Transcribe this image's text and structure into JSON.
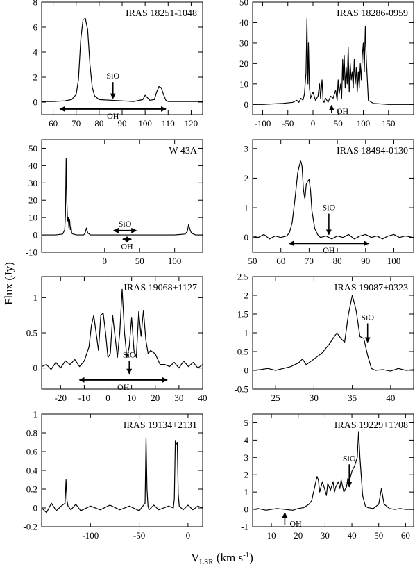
{
  "figure": {
    "ylabel": "Flux (Jy)",
    "xlabel_main": "V",
    "xlabel_sub": "LSR",
    "xlabel_unit_pre": " (km s",
    "xlabel_unit_exp": "-1",
    "xlabel_unit_post": ")"
  },
  "chart_data": [
    {
      "type": "line",
      "title": "IRAS 18251-1048",
      "xlim": [
        55,
        125
      ],
      "ylim": [
        -1,
        8
      ],
      "xticks": [
        60,
        70,
        80,
        90,
        100,
        110,
        120
      ],
      "yticks": [
        0,
        2,
        4,
        6,
        8
      ],
      "series": [
        {
          "x": [
            55,
            60,
            65,
            68,
            70,
            71,
            72,
            73,
            74,
            75,
            76,
            77,
            78,
            80,
            85,
            90,
            95,
            99,
            100,
            101,
            102,
            104,
            105,
            106,
            107,
            108,
            109,
            110,
            115,
            120,
            125
          ],
          "values": [
            0.05,
            0.05,
            0.1,
            0.2,
            0.6,
            1.8,
            5.0,
            6.6,
            6.7,
            5.8,
            3.0,
            1.2,
            0.5,
            0.2,
            0.15,
            0.1,
            0.05,
            0.2,
            0.55,
            0.35,
            0.15,
            0.2,
            0.8,
            1.25,
            1.15,
            0.6,
            0.15,
            0.05,
            0.05,
            0.05,
            0.05
          ]
        }
      ],
      "annotations": [
        {
          "type": "arrow-down",
          "label": "SiO",
          "x": 86,
          "y_from": 1.6,
          "y_to": 0.3
        },
        {
          "type": "range",
          "label": "OH",
          "x_from": 63,
          "x_to": 109,
          "y": -0.55
        }
      ]
    },
    {
      "type": "line",
      "title": "IRAS 18286-0959",
      "xlim": [
        -120,
        200
      ],
      "ylim": [
        -5,
        50
      ],
      "xticks": [
        -100,
        -50,
        0,
        50,
        100,
        150
      ],
      "yticks": [
        0,
        10,
        20,
        30,
        40,
        50
      ],
      "series": [
        {
          "x": [
            -120,
            -100,
            -60,
            -40,
            -32,
            -28,
            -24,
            -20,
            -17,
            -15,
            -14,
            -13,
            -12,
            -11,
            -10,
            -9,
            -7,
            -5,
            0,
            5,
            10,
            13,
            15,
            18,
            20,
            22,
            25,
            30,
            35,
            40,
            45,
            48,
            50,
            52,
            55,
            57,
            59,
            60,
            62,
            64,
            66,
            68,
            70,
            72,
            74,
            76,
            78,
            80,
            82,
            84,
            86,
            88,
            90,
            92,
            94,
            96,
            98,
            100,
            102,
            104,
            106,
            108,
            110,
            120,
            150,
            200
          ],
          "values": [
            0,
            0,
            0.5,
            1,
            2,
            1,
            3,
            2,
            5,
            12,
            15,
            28,
            42,
            22,
            10,
            30,
            8,
            3,
            6,
            2,
            4,
            10,
            3,
            12,
            2,
            1,
            3,
            1,
            4,
            3,
            7,
            2,
            12,
            5,
            10,
            3,
            22,
            12,
            24,
            8,
            18,
            10,
            28,
            6,
            20,
            12,
            16,
            8,
            22,
            10,
            18,
            6,
            16,
            8,
            20,
            12,
            24,
            30,
            16,
            38,
            22,
            12,
            2,
            0.5,
            0,
            0
          ]
        }
      ],
      "annotations": [
        {
          "type": "arrow-up",
          "label": "OH",
          "x": 37,
          "y_from": -4,
          "y_to": -0.5
        }
      ]
    },
    {
      "type": "line",
      "title": "W 43A",
      "xlim": [
        -90,
        140
      ],
      "ylim": [
        -10,
        55
      ],
      "xticks": [
        0,
        50,
        100
      ],
      "yticks": [
        -10,
        0,
        10,
        20,
        30,
        40,
        50
      ],
      "series": [
        {
          "x": [
            -90,
            -70,
            -60,
            -57,
            -56,
            -55,
            -54,
            -53,
            -52,
            -51,
            -50,
            -49,
            -48,
            -47,
            -45,
            -40,
            -30,
            -28,
            -26,
            -24,
            -20,
            0,
            50,
            100,
            115,
            118,
            120,
            122,
            124,
            130,
            140
          ],
          "values": [
            0,
            0,
            0.5,
            3,
            12,
            44,
            20,
            8,
            10,
            4,
            9,
            3,
            5,
            1,
            0.5,
            0,
            0,
            1,
            4,
            1,
            0,
            0,
            0,
            0,
            0.5,
            2,
            6,
            3,
            1,
            0,
            0
          ]
        }
      ],
      "annotations": [
        {
          "type": "range",
          "label": "SiO",
          "x_from": 13,
          "x_to": 45,
          "y": 2.5
        },
        {
          "type": "range",
          "label": "OH",
          "x_from": 26,
          "x_to": 38,
          "y": -2.5
        }
      ]
    },
    {
      "type": "line",
      "title": "IRAS 18494-0130",
      "xlim": [
        50,
        107
      ],
      "ylim": [
        -0.5,
        3.3
      ],
      "xticks": [
        50,
        60,
        70,
        80,
        90,
        100
      ],
      "yticks": [
        0,
        1,
        2,
        3
      ],
      "series": [
        {
          "x": [
            50,
            52,
            54,
            56,
            58,
            60,
            62,
            63,
            64,
            65,
            66,
            67,
            67.5,
            68,
            68.5,
            69,
            69.5,
            70,
            70.5,
            71,
            72,
            73,
            74,
            76,
            78,
            80,
            82,
            84,
            86,
            88,
            90,
            92,
            94,
            96,
            98,
            100,
            102,
            104,
            107
          ],
          "values": [
            0.05,
            0,
            0.1,
            -0.05,
            0.05,
            0,
            0.05,
            0.15,
            0.5,
            1.3,
            2.2,
            2.6,
            2.4,
            1.6,
            1.3,
            1.8,
            1.9,
            1.95,
            1.6,
            0.9,
            0.3,
            0.1,
            0,
            0.05,
            -0.05,
            0.05,
            0,
            0.1,
            -0.05,
            0.05,
            0.1,
            0,
            0.05,
            -0.05,
            0.05,
            0.1,
            0,
            0.05,
            0
          ]
        }
      ],
      "annotations": [
        {
          "type": "arrow-down",
          "label": "SiO",
          "x": 77,
          "y_from": 0.8,
          "y_to": 0.1
        },
        {
          "type": "range",
          "label": "OH",
          "x_from": 63,
          "x_to": 91,
          "y": -0.2
        }
      ]
    },
    {
      "type": "line",
      "title": "IRAS 19068+1127",
      "xlim": [
        -28,
        40
      ],
      "ylim": [
        -0.3,
        1.3
      ],
      "xticks": [
        -20,
        -10,
        0,
        10,
        20,
        30,
        40
      ],
      "yticks": [
        0,
        0.5,
        1
      ],
      "series": [
        {
          "x": [
            -28,
            -26,
            -24,
            -22,
            -20,
            -18,
            -16,
            -14,
            -12,
            -10,
            -8,
            -7,
            -6,
            -5,
            -4,
            -3,
            -2,
            -1,
            0,
            1,
            2,
            3,
            4,
            5,
            6,
            7,
            8,
            9,
            10,
            11,
            12,
            13,
            14,
            15,
            16,
            17,
            18,
            20,
            22,
            24,
            26,
            28,
            30,
            32,
            34,
            36,
            38,
            40
          ],
          "values": [
            0.02,
            0.05,
            -0.02,
            0.08,
            0,
            0.1,
            0.05,
            0.12,
            0.02,
            0.1,
            0.3,
            0.6,
            0.75,
            0.5,
            0.25,
            0.75,
            0.78,
            0.5,
            0.15,
            0.2,
            0.75,
            0.45,
            0.15,
            0.5,
            1.12,
            0.5,
            0.15,
            0.3,
            0.72,
            0.25,
            0.15,
            0.8,
            0.45,
            0.82,
            0.4,
            0.2,
            0.25,
            0.2,
            0.05,
            0.05,
            0.02,
            0.08,
            0,
            0.1,
            0.02,
            0.08,
            0,
            0.05
          ]
        }
      ],
      "annotations": [
        {
          "type": "arrow-down",
          "label": "SiO",
          "x": 9,
          "y_from": 0.1,
          "y_to": -0.08
        },
        {
          "type": "range",
          "label": "OH",
          "x_from": -12,
          "x_to": 25,
          "y": -0.17
        }
      ]
    },
    {
      "type": "line",
      "title": "IRAS 19087+0323",
      "xlim": [
        22,
        43
      ],
      "ylim": [
        -0.5,
        2.5
      ],
      "xticks": [
        25,
        30,
        35,
        40
      ],
      "yticks": [
        -0.5,
        0,
        0.5,
        1,
        1.5,
        2,
        2.5
      ],
      "series": [
        {
          "x": [
            22,
            23,
            24,
            25,
            26,
            27,
            28,
            28.5,
            29,
            30,
            31,
            32,
            33,
            33.5,
            34,
            34.5,
            35,
            35.5,
            36,
            36.5,
            37,
            37.5,
            38,
            39,
            40,
            41,
            42,
            43
          ],
          "values": [
            0,
            0.02,
            0.05,
            0,
            0.05,
            0.1,
            0.2,
            0.3,
            0.15,
            0.3,
            0.45,
            0.7,
            1.0,
            0.85,
            0.75,
            1.5,
            2.0,
            1.6,
            0.9,
            0.85,
            0.4,
            0.05,
            0,
            0.02,
            -0.02,
            0.05,
            0,
            0.02
          ]
        }
      ],
      "annotations": [
        {
          "type": "arrow-down",
          "label": "SiO",
          "x": 37,
          "y_from": 1.25,
          "y_to": 0.75
        }
      ]
    },
    {
      "type": "line",
      "title": "IRAS 19134+2131",
      "xlim": [
        -150,
        15
      ],
      "ylim": [
        -0.2,
        1.0
      ],
      "xticks": [
        -100,
        -50,
        0
      ],
      "yticks": [
        -0.2,
        0,
        0.2,
        0.4,
        0.6,
        0.8,
        1
      ],
      "series": [
        {
          "x": [
            -150,
            -145,
            -140,
            -135,
            -130,
            -126,
            -125,
            -124,
            -123,
            -120,
            -115,
            -110,
            -100,
            -90,
            -80,
            -70,
            -60,
            -50,
            -44,
            -43,
            -42,
            -41,
            -40,
            -35,
            -30,
            -20,
            -15,
            -14,
            -13,
            -12,
            -11,
            -10,
            -9,
            -5,
            0,
            5,
            10,
            15
          ],
          "values": [
            0,
            -0.05,
            0.05,
            -0.03,
            0.02,
            0.05,
            0.3,
            0.08,
            0.02,
            -0.02,
            0.04,
            -0.03,
            0.02,
            -0.02,
            0.03,
            -0.02,
            0.02,
            -0.03,
            0.05,
            0.75,
            0.2,
            0.02,
            -0.02,
            0.03,
            -0.02,
            0.02,
            0,
            0.1,
            0.72,
            0.68,
            0.7,
            0.15,
            0.02,
            -0.02,
            0.03,
            -0.02,
            0.02,
            0
          ]
        }
      ],
      "annotations": []
    },
    {
      "type": "line",
      "title": "IRAS 19229+1708",
      "xlim": [
        3,
        63
      ],
      "ylim": [
        -1,
        5.5
      ],
      "xticks": [
        10,
        20,
        30,
        40,
        50,
        60
      ],
      "yticks": [
        -1,
        0,
        1,
        2,
        3,
        4,
        5
      ],
      "series": [
        {
          "x": [
            3,
            5,
            8,
            10,
            12,
            15,
            18,
            20,
            22,
            24,
            25,
            26,
            27,
            27.5,
            28,
            29,
            30,
            30.5,
            31,
            32,
            33,
            33.5,
            34,
            35,
            35.5,
            36,
            37,
            38,
            38.5,
            39,
            40,
            41,
            42,
            42.5,
            43,
            44,
            45,
            46,
            48,
            50,
            51,
            52,
            54,
            56,
            58,
            60,
            63
          ],
          "values": [
            0,
            0.05,
            -0.05,
            0,
            0.05,
            0,
            -0.05,
            0.05,
            0.1,
            0.3,
            0.5,
            1.2,
            1.9,
            1.7,
            1.0,
            1.6,
            1.1,
            0.8,
            1.5,
            1.1,
            1.6,
            1.0,
            1.3,
            1.6,
            1.2,
            1.7,
            1.0,
            1.3,
            1.8,
            1.6,
            2.2,
            2.5,
            3.0,
            4.5,
            3.0,
            0.8,
            0.2,
            0.1,
            0.05,
            0.3,
            1.2,
            0.3,
            0.05,
            0,
            0.05,
            0,
            0
          ]
        }
      ],
      "annotations": [
        {
          "type": "arrow-down",
          "label": "SiO",
          "x": 39,
          "y_from": 2.6,
          "y_to": 1.3
        },
        {
          "type": "arrow-up",
          "label": "OH",
          "x": 15,
          "y_from": -0.9,
          "y_to": -0.2
        }
      ]
    }
  ]
}
